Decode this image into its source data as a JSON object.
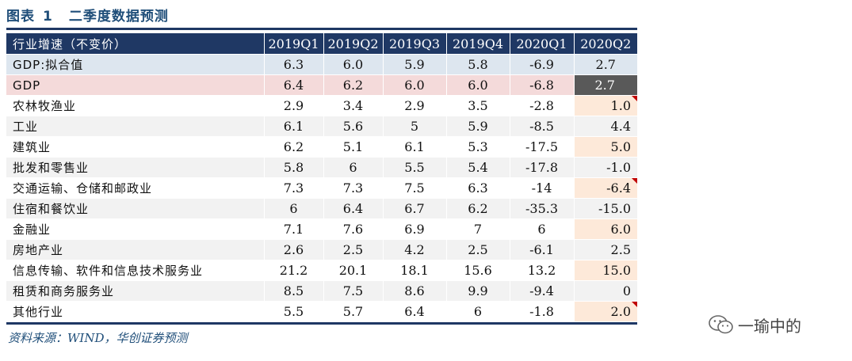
{
  "figure": {
    "label": "图表",
    "number": "1",
    "title": "二季度数据预测"
  },
  "table": {
    "header": [
      "行业增速（不变价）",
      "2019Q1",
      "2019Q2",
      "2019Q3",
      "2019Q4",
      "2020Q1",
      "2020Q2"
    ],
    "rows": [
      {
        "label": "GDP:拟合值",
        "values": [
          "6.3",
          "6.0",
          "5.9",
          "5.8",
          "-6.9",
          "2.7"
        ]
      },
      {
        "label": "GDP",
        "values": [
          "6.4",
          "6.2",
          "6.0",
          "6.0",
          "-6.8",
          "2.7"
        ]
      },
      {
        "label": "农林牧渔业",
        "values": [
          "2.9",
          "3.4",
          "2.9",
          "3.5",
          "-2.8",
          "1.0"
        ]
      },
      {
        "label": "工业",
        "values": [
          "6.1",
          "5.6",
          "5",
          "5.9",
          "-8.5",
          "4.4"
        ]
      },
      {
        "label": "建筑业",
        "values": [
          "6.2",
          "5.1",
          "6.1",
          "5.3",
          "-17.5",
          "5.0"
        ]
      },
      {
        "label": "批发和零售业",
        "values": [
          "5.8",
          "6",
          "5.5",
          "5.4",
          "-17.8",
          "-1.0"
        ]
      },
      {
        "label": "交通运输、仓储和邮政业",
        "values": [
          "7.3",
          "7.3",
          "7.5",
          "6.3",
          "-14",
          "-6.4"
        ]
      },
      {
        "label": "住宿和餐饮业",
        "values": [
          "6",
          "6.4",
          "6.7",
          "6.2",
          "-35.3",
          "-15.0"
        ]
      },
      {
        "label": "金融业",
        "values": [
          "7.1",
          "7.6",
          "6.9",
          "7",
          "6",
          "6.0"
        ]
      },
      {
        "label": "房地产业",
        "values": [
          "2.6",
          "2.5",
          "4.2",
          "2.5",
          "-6.1",
          "2.5"
        ]
      },
      {
        "label": "信息传输、软件和信息技术服务业",
        "values": [
          "21.2",
          "20.1",
          "18.1",
          "15.6",
          "13.2",
          "15.0"
        ]
      },
      {
        "label": "租赁和商务服务业",
        "values": [
          "8.5",
          "7.5",
          "8.6",
          "9.9",
          "-9.4",
          "0"
        ]
      },
      {
        "label": "其他行业",
        "values": [
          "5.5",
          "5.7",
          "6.4",
          "6",
          "-1.8",
          "2.0"
        ]
      }
    ]
  },
  "source": "资料来源：WIND，华创证券预测",
  "watermark": {
    "text": "一瑜中的",
    "icon": "wechat-icon"
  },
  "colors": {
    "header_bg": "#1f3864",
    "fitted_row_bg": "#dde6ef",
    "gdp_row_bg": "#f4dada",
    "highlight": "#fde9d9",
    "flag": "#c00000"
  }
}
